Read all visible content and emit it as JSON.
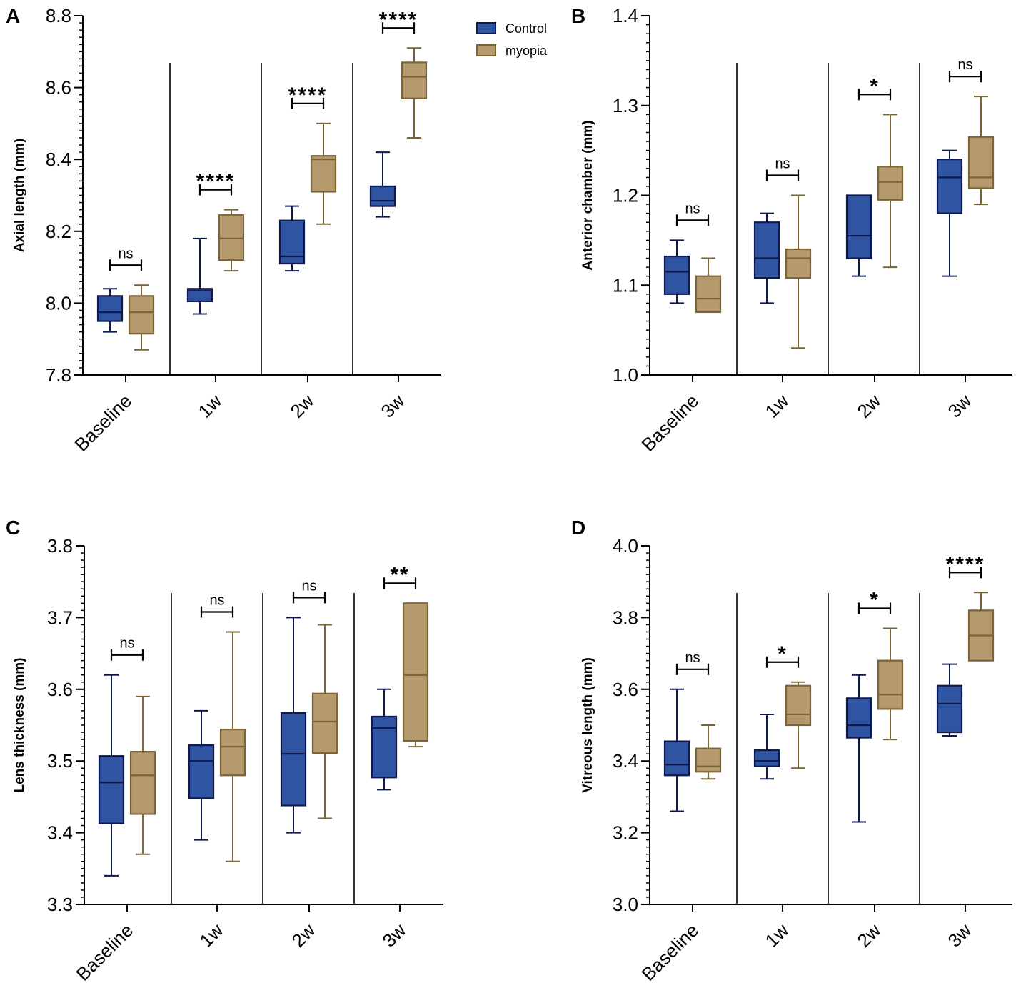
{
  "legend": {
    "control_label": "Control",
    "myopia_label": "myopia",
    "control_color": "#2e54a2",
    "control_stroke": "#0e1a4f",
    "myopia_color": "#b49a6c",
    "myopia_stroke": "#7a6438"
  },
  "chart_data": [
    {
      "type": "box",
      "panel": "A",
      "ylabel": "Axial length (mm)",
      "ylim": [
        7.8,
        8.8
      ],
      "yticks": [
        7.8,
        8.0,
        8.2,
        8.4,
        8.6,
        8.8
      ],
      "ytick_labels": [
        "7.8",
        "8.0",
        "8.2",
        "8.4",
        "8.6",
        "8.8"
      ],
      "categories": [
        "Baseline",
        "1w",
        "2w",
        "3w"
      ],
      "series": [
        {
          "name": "Control",
          "boxes": [
            {
              "min": 7.92,
              "q1": 7.95,
              "median": 7.975,
              "q3": 8.02,
              "max": 8.04
            },
            {
              "min": 7.97,
              "q1": 8.005,
              "median": 8.035,
              "q3": 8.04,
              "max": 8.18
            },
            {
              "min": 8.09,
              "q1": 8.11,
              "median": 8.13,
              "q3": 8.23,
              "max": 8.27
            },
            {
              "min": 8.24,
              "q1": 8.27,
              "median": 8.285,
              "q3": 8.325,
              "max": 8.42
            }
          ]
        },
        {
          "name": "myopia",
          "boxes": [
            {
              "min": 7.87,
              "q1": 7.915,
              "median": 7.975,
              "q3": 8.02,
              "max": 8.05
            },
            {
              "min": 8.09,
              "q1": 8.12,
              "median": 8.18,
              "q3": 8.245,
              "max": 8.26
            },
            {
              "min": 8.22,
              "q1": 8.31,
              "median": 8.4,
              "q3": 8.41,
              "max": 8.5
            },
            {
              "min": 8.46,
              "q1": 8.57,
              "median": 8.63,
              "q3": 8.67,
              "max": 8.71
            }
          ]
        }
      ],
      "significance": [
        "ns",
        "****",
        "****",
        "****"
      ]
    },
    {
      "type": "box",
      "panel": "B",
      "ylabel": "Anterior chamber (mm)",
      "ylim": [
        1.0,
        1.4
      ],
      "yticks": [
        1.0,
        1.1,
        1.2,
        1.3,
        1.4
      ],
      "ytick_labels": [
        "1.0",
        "1.1",
        "1.2",
        "1.3",
        "1.4"
      ],
      "categories": [
        "Baseline",
        "1w",
        "2w",
        "3w"
      ],
      "series": [
        {
          "name": "Control",
          "boxes": [
            {
              "min": 1.08,
              "q1": 1.09,
              "median": 1.115,
              "q3": 1.132,
              "max": 1.15
            },
            {
              "min": 1.08,
              "q1": 1.108,
              "median": 1.13,
              "q3": 1.17,
              "max": 1.18
            },
            {
              "min": 1.11,
              "q1": 1.13,
              "median": 1.155,
              "q3": 1.2,
              "max": 1.2
            },
            {
              "min": 1.11,
              "q1": 1.18,
              "median": 1.22,
              "q3": 1.24,
              "max": 1.25
            }
          ]
        },
        {
          "name": "myopia",
          "boxes": [
            {
              "min": 1.07,
              "q1": 1.07,
              "median": 1.085,
              "q3": 1.11,
              "max": 1.13
            },
            {
              "min": 1.03,
              "q1": 1.108,
              "median": 1.13,
              "q3": 1.14,
              "max": 1.2
            },
            {
              "min": 1.12,
              "q1": 1.195,
              "median": 1.215,
              "q3": 1.232,
              "max": 1.29
            },
            {
              "min": 1.19,
              "q1": 1.208,
              "median": 1.22,
              "q3": 1.265,
              "max": 1.31
            }
          ]
        }
      ],
      "significance": [
        "ns",
        "ns",
        "*",
        "ns"
      ]
    },
    {
      "type": "box",
      "panel": "C",
      "ylabel": "Lens thickness (mm)",
      "ylim": [
        3.3,
        3.8
      ],
      "yticks": [
        3.3,
        3.4,
        3.5,
        3.6,
        3.7,
        3.8
      ],
      "ytick_labels": [
        "3.3",
        "3.4",
        "3.5",
        "3.6",
        "3.7",
        "3.8"
      ],
      "categories": [
        "Baseline",
        "1w",
        "2w",
        "3w"
      ],
      "series": [
        {
          "name": "Control",
          "boxes": [
            {
              "min": 3.34,
              "q1": 3.413,
              "median": 3.47,
              "q3": 3.507,
              "max": 3.62
            },
            {
              "min": 3.39,
              "q1": 3.448,
              "median": 3.5,
              "q3": 3.522,
              "max": 3.57
            },
            {
              "min": 3.4,
              "q1": 3.438,
              "median": 3.51,
              "q3": 3.567,
              "max": 3.7
            },
            {
              "min": 3.46,
              "q1": 3.477,
              "median": 3.546,
              "q3": 3.562,
              "max": 3.6
            }
          ]
        },
        {
          "name": "myopia",
          "boxes": [
            {
              "min": 3.37,
              "q1": 3.426,
              "median": 3.48,
              "q3": 3.513,
              "max": 3.59
            },
            {
              "min": 3.36,
              "q1": 3.48,
              "median": 3.52,
              "q3": 3.544,
              "max": 3.68
            },
            {
              "min": 3.42,
              "q1": 3.511,
              "median": 3.555,
              "q3": 3.594,
              "max": 3.69
            },
            {
              "min": 3.52,
              "q1": 3.528,
              "median": 3.62,
              "q3": 3.72,
              "max": 3.72
            }
          ]
        }
      ],
      "significance": [
        "ns",
        "ns",
        "ns",
        "**"
      ]
    },
    {
      "type": "box",
      "panel": "D",
      "ylabel": "Vitreous length (mm)",
      "ylim": [
        3.0,
        4.0
      ],
      "yticks": [
        3.0,
        3.2,
        3.4,
        3.6,
        3.8,
        4.0
      ],
      "ytick_labels": [
        "3.0",
        "3.2",
        "3.4",
        "3.6",
        "3.8",
        "4.0"
      ],
      "categories": [
        "Baseline",
        "1w",
        "2w",
        "3w"
      ],
      "series": [
        {
          "name": "Control",
          "boxes": [
            {
              "min": 3.26,
              "q1": 3.36,
              "median": 3.39,
              "q3": 3.455,
              "max": 3.6
            },
            {
              "min": 3.35,
              "q1": 3.385,
              "median": 3.4,
              "q3": 3.43,
              "max": 3.53
            },
            {
              "min": 3.23,
              "q1": 3.465,
              "median": 3.5,
              "q3": 3.575,
              "max": 3.64
            },
            {
              "min": 3.47,
              "q1": 3.48,
              "median": 3.56,
              "q3": 3.61,
              "max": 3.67
            }
          ]
        },
        {
          "name": "myopia",
          "boxes": [
            {
              "min": 3.35,
              "q1": 3.37,
              "median": 3.385,
              "q3": 3.435,
              "max": 3.5
            },
            {
              "min": 3.38,
              "q1": 3.5,
              "median": 3.53,
              "q3": 3.61,
              "max": 3.62
            },
            {
              "min": 3.46,
              "q1": 3.545,
              "median": 3.585,
              "q3": 3.68,
              "max": 3.77
            },
            {
              "min": 3.68,
              "q1": 3.68,
              "median": 3.75,
              "q3": 3.82,
              "max": 3.87
            }
          ]
        }
      ],
      "significance": [
        "ns",
        "*",
        "*",
        "****"
      ]
    }
  ]
}
